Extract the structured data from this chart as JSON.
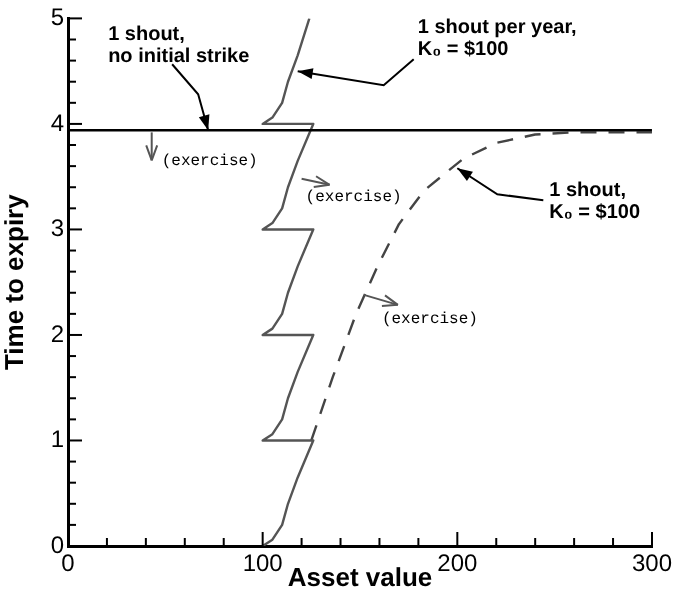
{
  "chart_data": {
    "type": "line",
    "xlabel": "Asset value",
    "ylabel": "Time to expiry",
    "xlim": [
      0,
      300
    ],
    "ylim": [
      0,
      5
    ],
    "xticks": [
      0,
      {
        "value": 20,
        "label": null
      },
      {
        "value": 40,
        "label": null
      },
      {
        "value": 60,
        "label": null
      },
      {
        "value": 80,
        "label": null
      },
      100,
      {
        "value": 120,
        "label": null
      },
      {
        "value": 140,
        "label": null
      },
      {
        "value": 160,
        "label": null
      },
      {
        "value": 180,
        "label": null
      },
      200,
      {
        "value": 220,
        "label": null
      },
      {
        "value": 240,
        "label": null
      },
      {
        "value": 260,
        "label": null
      },
      {
        "value": 280,
        "label": null
      },
      300
    ],
    "yticks": [
      0,
      {
        "value": 0.2,
        "label": null
      },
      {
        "value": 0.4,
        "label": null
      },
      {
        "value": 0.6,
        "label": null
      },
      {
        "value": 0.8,
        "label": null
      },
      1,
      {
        "value": 1.2,
        "label": null
      },
      {
        "value": 1.4,
        "label": null
      },
      {
        "value": 1.6,
        "label": null
      },
      {
        "value": 1.8,
        "label": null
      },
      2,
      {
        "value": 2.2,
        "label": null
      },
      {
        "value": 2.4,
        "label": null
      },
      {
        "value": 2.6,
        "label": null
      },
      {
        "value": 2.8,
        "label": null
      },
      3,
      {
        "value": 3.2,
        "label": null
      },
      {
        "value": 3.4,
        "label": null
      },
      {
        "value": 3.6,
        "label": null
      },
      {
        "value": 3.8,
        "label": null
      },
      4,
      {
        "value": 4.2,
        "label": null
      },
      {
        "value": 4.4,
        "label": null
      },
      {
        "value": 4.6,
        "label": null
      },
      {
        "value": 4.8,
        "label": null
      },
      5
    ],
    "grid": false,
    "legend": false,
    "marker": "none",
    "series": [
      {
        "color": "#000000",
        "line_style": "solid",
        "x": [
          0,
          300
        ],
        "values": [
          3.94,
          3.94
        ]
      },
      {
        "color": "#555555",
        "line_style": "solid",
        "x": [
          100,
          105,
          110,
          113,
          118,
          126,
          100,
          105,
          110,
          113,
          118,
          126,
          100,
          105,
          110,
          113,
          118,
          126,
          100,
          105,
          110,
          113,
          118,
          126,
          100,
          105,
          110,
          113,
          118,
          124
        ],
        "values": [
          0,
          0.06,
          0.2,
          0.4,
          0.65,
          1,
          1,
          1.06,
          1.2,
          1.4,
          1.65,
          2,
          2,
          2.06,
          2.2,
          2.4,
          2.65,
          3,
          3,
          3.06,
          3.2,
          3.4,
          3.65,
          4,
          4,
          4.06,
          4.2,
          4.4,
          4.65,
          5
        ]
      },
      {
        "color": "#444444",
        "line_style": "dashed",
        "x": [
          125,
          136,
          148,
          159,
          170,
          183,
          203,
          220,
          240,
          260,
          300
        ],
        "values": [
          1,
          1.6,
          2.2,
          2.65,
          3.05,
          3.37,
          3.67,
          3.82,
          3.9,
          3.92,
          3.92
        ]
      }
    ],
    "annotations": [
      {
        "text": "1 shout,\nno initial strike",
        "x": 72,
        "y": 3.94
      },
      {
        "text": "1 shout per year,\nK₀ = $100",
        "x": 118,
        "y": 4.5
      },
      {
        "text": "1 shout,\nK₀ = $100",
        "x": 200,
        "y": 3.58
      },
      {
        "text": "(exercise)",
        "x": 43,
        "y": 3.92
      },
      {
        "text": "(exercise)",
        "x": 120,
        "y": 3.48
      },
      {
        "text": "(exercise)",
        "x": 152,
        "y": 2.38
      }
    ]
  }
}
